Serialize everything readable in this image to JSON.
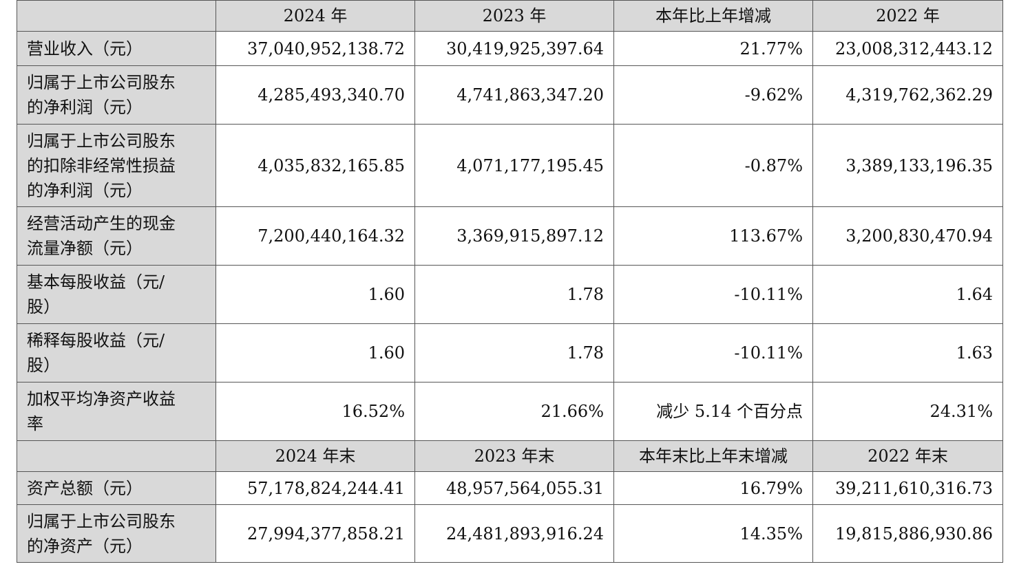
{
  "header1": {
    "col1": "2024 年",
    "col2": "2023 年",
    "col3": "本年比上年增减",
    "col4": "2022 年"
  },
  "header2": {
    "col1": "2024 年末",
    "col2": "2023 年末",
    "col3": "本年末比上年末增减",
    "col4": "2022 年末"
  },
  "rows": [
    {
      "label_lines": [
        "营业收入（元）"
      ],
      "v2024": "37,040,952,138.72",
      "v2023": "30,419,925,397.64",
      "change": "21.77%",
      "v2022": "23,008,312,443.12"
    },
    {
      "label_lines": [
        "归属于上市公司股东",
        "的净利润（元）"
      ],
      "v2024": "4,285,493,340.70",
      "v2023": "4,741,863,347.20",
      "change": "-9.62%",
      "v2022": "4,319,762,362.29"
    },
    {
      "label_lines": [
        "归属于上市公司股东",
        "的扣除非经常性损益",
        "的净利润（元）"
      ],
      "v2024": "4,035,832,165.85",
      "v2023": "4,071,177,195.45",
      "change": "-0.87%",
      "v2022": "3,389,133,196.35"
    },
    {
      "label_lines": [
        "经营活动产生的现金",
        "流量净额（元）"
      ],
      "v2024": "7,200,440,164.32",
      "v2023": "3,369,915,897.12",
      "change": "113.67%",
      "v2022": "3,200,830,470.94"
    },
    {
      "label_lines": [
        "基本每股收益（元/",
        "股）"
      ],
      "v2024": "1.60",
      "v2023": "1.78",
      "change": "-10.11%",
      "v2022": "1.64"
    },
    {
      "label_lines": [
        "稀释每股收益（元/",
        "股）"
      ],
      "v2024": "1.60",
      "v2023": "1.78",
      "change": "-10.11%",
      "v2022": "1.63"
    },
    {
      "label_lines": [
        "加权平均净资产收益",
        "率"
      ],
      "v2024": "16.52%",
      "v2023": "21.66%",
      "change": "减少 5.14 个百分点",
      "v2022": "24.31%"
    }
  ],
  "rows2": [
    {
      "label_lines": [
        "资产总额（元）"
      ],
      "v2024": "57,178,824,244.41",
      "v2023": "48,957,564,055.31",
      "change": "16.79%",
      "v2022": "39,211,610,316.73"
    },
    {
      "label_lines": [
        "归属于上市公司股东",
        "的净资产（元）"
      ],
      "v2024": "27,994,377,858.21",
      "v2023": "24,481,893,916.24",
      "change": "14.35%",
      "v2022": "19,815,886,930.86"
    }
  ]
}
